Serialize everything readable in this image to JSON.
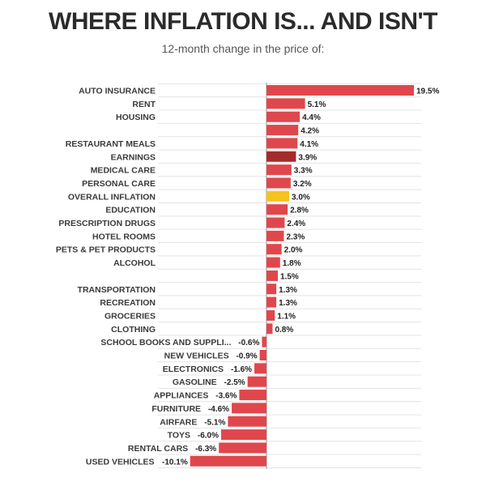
{
  "title": "WHERE INFLATION IS... AND ISN'T",
  "subtitle": "12-month change in the price of:",
  "colors": {
    "default": "#e0474c",
    "earnings": "#a52a2a",
    "overall": "#f6c21c",
    "grid": "#e4e4e4",
    "axis": "#999999"
  },
  "chart_data": {
    "type": "bar",
    "orientation": "horizontal",
    "unit": "%",
    "xlim": [
      -10.1,
      19.5
    ],
    "grid": true,
    "categories": [
      "AUTO INSURANCE",
      "RENT",
      "HOUSING",
      "",
      "RESTAURANT MEALS",
      "EARNINGS",
      "MEDICAL CARE",
      "PERSONAL CARE",
      "OVERALL INFLATION",
      "EDUCATION",
      "PRESCRIPTION DRUGS",
      "HOTEL ROOMS",
      "PETS & PET PRODUCTS",
      "ALCOHOL",
      "",
      "TRANSPORTATION",
      "RECREATION",
      "GROCERIES",
      "CLOTHING",
      "SCHOOL BOOKS AND SUPPLI...",
      "NEW VEHICLES",
      "ELECTRONICS",
      "GASOLINE",
      "APPLIANCES",
      "FURNITURE",
      "AIRFARE",
      "TOYS",
      "RENTAL CARS",
      "USED VEHICLES"
    ],
    "values": [
      19.5,
      5.1,
      4.4,
      4.2,
      4.1,
      3.9,
      3.3,
      3.2,
      3.0,
      2.8,
      2.4,
      2.3,
      2.0,
      1.8,
      1.5,
      1.3,
      1.3,
      1.1,
      0.8,
      -0.6,
      -0.9,
      -1.6,
      -2.5,
      -3.6,
      -4.6,
      -5.1,
      -6.0,
      -6.3,
      -10.1
    ],
    "labels": [
      "19.5%",
      "5.1%",
      "4.4%",
      "4.2%",
      "4.1%",
      "3.9%",
      "3.3%",
      "3.2%",
      "3.0%",
      "2.8%",
      "2.4%",
      "2.3%",
      "2.0%",
      "1.8%",
      "1.5%",
      "1.3%",
      "1.3%",
      "1.1%",
      "0.8%",
      "-0.6%",
      "-0.9%",
      "-1.6%",
      "-2.5%",
      "-3.6%",
      "-4.6%",
      "-5.1%",
      "-6.0%",
      "-6.3%",
      "-10.1%"
    ],
    "highlight": {
      "EARNINGS": "earnings",
      "OVERALL INFLATION": "overall"
    }
  }
}
